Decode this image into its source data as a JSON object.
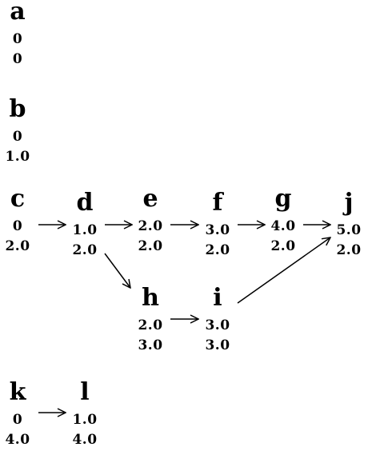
{
  "nodes": [
    {
      "id": "a",
      "label": "a",
      "v1": "0",
      "v2": "0"
    },
    {
      "id": "b",
      "label": "b",
      "v1": "0",
      "v2": "1.0"
    },
    {
      "id": "c",
      "label": "c",
      "v1": "0",
      "v2": "2.0"
    },
    {
      "id": "d",
      "label": "d",
      "v1": "1.0",
      "v2": "2.0"
    },
    {
      "id": "e",
      "label": "e",
      "v1": "2.0",
      "v2": "2.0"
    },
    {
      "id": "f",
      "label": "f",
      "v1": "3.0",
      "v2": "2.0"
    },
    {
      "id": "g",
      "label": "g",
      "v1": "4.0",
      "v2": "2.0"
    },
    {
      "id": "j",
      "label": "j",
      "v1": "5.0",
      "v2": "2.0"
    },
    {
      "id": "h",
      "label": "h",
      "v1": "2.0",
      "v2": "3.0"
    },
    {
      "id": "i",
      "label": "i",
      "v1": "3.0",
      "v2": "3.0"
    },
    {
      "id": "k",
      "label": "k",
      "v1": "0",
      "v2": "4.0"
    },
    {
      "id": "l",
      "label": "l",
      "v1": "1.0",
      "v2": "4.0"
    }
  ],
  "edges": [
    {
      "from": "c",
      "to": "d"
    },
    {
      "from": "d",
      "to": "e"
    },
    {
      "from": "e",
      "to": "f"
    },
    {
      "from": "f",
      "to": "g"
    },
    {
      "from": "g",
      "to": "j"
    },
    {
      "from": "d",
      "to": "h"
    },
    {
      "from": "h",
      "to": "i"
    },
    {
      "from": "i",
      "to": "j"
    },
    {
      "from": "k",
      "to": "l"
    }
  ]
}
